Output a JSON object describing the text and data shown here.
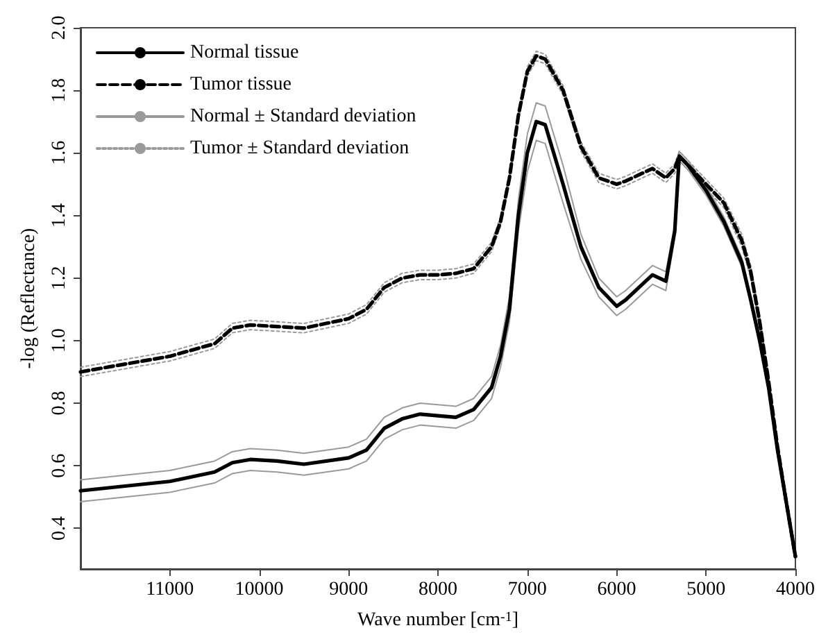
{
  "chart_data": {
    "type": "line",
    "xlabel": "Wave number [cm$^{-1}$]",
    "ylabel": "-log (Reflectance)",
    "xlim": [
      12000,
      4000
    ],
    "xticks": [
      11000,
      10000,
      9000,
      8000,
      7000,
      6000,
      5000,
      4000
    ],
    "ylim": [
      0.27,
      2.0
    ],
    "yticks": [
      {
        "value": 0.4,
        "label": "0.4"
      },
      {
        "value": 0.6,
        "label": "0.6"
      },
      {
        "value": 0.8,
        "label": "0.8"
      },
      {
        "value": 1.0,
        "label": "1.0"
      },
      {
        "value": 1.2,
        "label": "1.2"
      },
      {
        "value": 1.4,
        "label": "1.4"
      },
      {
        "value": 1.6,
        "label": "1.6"
      },
      {
        "value": 1.8,
        "label": "1.8"
      },
      {
        "value": 2.0,
        "label": "2.0"
      }
    ],
    "grid": false,
    "legend": "top left",
    "marker": "none",
    "x": [
      12000,
      11000,
      10500,
      10300,
      10100,
      9800,
      9500,
      9000,
      8800,
      8600,
      8400,
      8200,
      8000,
      7800,
      7600,
      7400,
      7300,
      7200,
      7100,
      7000,
      6900,
      6800,
      6600,
      6400,
      6200,
      6000,
      5900,
      5750,
      5600,
      5450,
      5350,
      5300,
      5200,
      5000,
      4800,
      4600,
      4500,
      4400,
      4300,
      4200,
      4100,
      4000
    ],
    "series": [
      {
        "name": "Normal tissue",
        "color": "#000000",
        "line_style": "solid",
        "values": [
          0.52,
          0.55,
          0.58,
          0.61,
          0.62,
          0.615,
          0.605,
          0.625,
          0.65,
          0.72,
          0.75,
          0.765,
          0.76,
          0.755,
          0.78,
          0.85,
          0.95,
          1.1,
          1.4,
          1.6,
          1.7,
          1.69,
          1.5,
          1.3,
          1.17,
          1.11,
          1.13,
          1.17,
          1.21,
          1.19,
          1.35,
          1.59,
          1.56,
          1.48,
          1.38,
          1.25,
          1.13,
          1.0,
          0.85,
          0.65,
          0.48,
          0.31
        ]
      },
      {
        "name": "Tumor tissue",
        "color": "#000000",
        "line_style": "dashed",
        "values": [
          0.9,
          0.95,
          0.99,
          1.04,
          1.05,
          1.045,
          1.04,
          1.07,
          1.1,
          1.17,
          1.2,
          1.21,
          1.21,
          1.215,
          1.23,
          1.3,
          1.38,
          1.52,
          1.72,
          1.86,
          1.91,
          1.9,
          1.8,
          1.62,
          1.52,
          1.5,
          1.51,
          1.53,
          1.55,
          1.52,
          1.55,
          1.59,
          1.56,
          1.5,
          1.44,
          1.32,
          1.22,
          1.06,
          0.87,
          0.66,
          0.48,
          0.31
        ]
      },
      {
        "name": "Normal ± Standard deviation",
        "color": "#9a9a9a",
        "line_style": "solid",
        "values": [
          0.555,
          0.585,
          0.615,
          0.645,
          0.655,
          0.65,
          0.64,
          0.66,
          0.685,
          0.755,
          0.785,
          0.8,
          0.795,
          0.79,
          0.815,
          0.885,
          0.985,
          1.14,
          1.45,
          1.66,
          1.76,
          1.75,
          1.56,
          1.34,
          1.2,
          1.14,
          1.16,
          1.2,
          1.24,
          1.22,
          1.37,
          1.605,
          1.575,
          1.495,
          1.395,
          1.265,
          1.145,
          1.01,
          0.86,
          0.66,
          0.49,
          0.31
        ]
      },
      {
        "color": "#9a9a9a",
        "line_style": "solid",
        "values": [
          0.485,
          0.515,
          0.545,
          0.575,
          0.585,
          0.58,
          0.57,
          0.59,
          0.615,
          0.685,
          0.715,
          0.73,
          0.725,
          0.72,
          0.745,
          0.815,
          0.915,
          1.06,
          1.35,
          1.54,
          1.64,
          1.63,
          1.44,
          1.26,
          1.14,
          1.08,
          1.1,
          1.14,
          1.18,
          1.16,
          1.33,
          1.575,
          1.545,
          1.465,
          1.365,
          1.235,
          1.115,
          0.99,
          0.84,
          0.64,
          0.47,
          0.31
        ]
      },
      {
        "name": "Tumor ± Standard deviation",
        "color": "#9a9a9a",
        "line_style": "dotted",
        "values": [
          0.915,
          0.965,
          1.005,
          1.055,
          1.065,
          1.06,
          1.055,
          1.085,
          1.115,
          1.185,
          1.215,
          1.225,
          1.225,
          1.23,
          1.245,
          1.315,
          1.395,
          1.535,
          1.735,
          1.875,
          1.925,
          1.915,
          1.815,
          1.635,
          1.535,
          1.515,
          1.525,
          1.545,
          1.565,
          1.535,
          1.565,
          1.605,
          1.575,
          1.515,
          1.455,
          1.34,
          1.24,
          1.08,
          0.885,
          0.675,
          0.49,
          0.31
        ]
      },
      {
        "color": "#9a9a9a",
        "line_style": "dotted",
        "values": [
          0.885,
          0.935,
          0.975,
          1.025,
          1.035,
          1.03,
          1.025,
          1.055,
          1.085,
          1.155,
          1.185,
          1.195,
          1.195,
          1.2,
          1.215,
          1.285,
          1.365,
          1.505,
          1.705,
          1.845,
          1.895,
          1.885,
          1.785,
          1.605,
          1.505,
          1.485,
          1.495,
          1.515,
          1.535,
          1.505,
          1.535,
          1.575,
          1.545,
          1.485,
          1.425,
          1.3,
          1.2,
          1.04,
          0.855,
          0.645,
          0.47,
          0.31
        ]
      }
    ]
  }
}
